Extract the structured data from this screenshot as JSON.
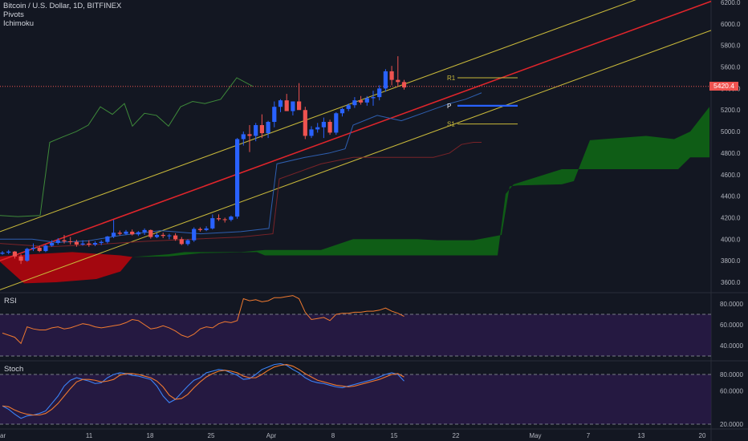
{
  "header": {
    "symbol_line": "Bitcoin / U.S. Dollar, 1D, BITFINEX",
    "indicators": [
      "Pivots",
      "Ichimoku"
    ]
  },
  "price_tag": "5420.4",
  "panels": {
    "rsi_label": "RSI",
    "stoch_label": "Stoch"
  },
  "colors": {
    "background": "#131722",
    "bull": "#2962ff",
    "bear": "#ef5350",
    "channel_mid": "#e0252b",
    "channel_band": "#c9b93a",
    "kumo_bull": "#0f5d16",
    "kumo_bear": "#a3070f",
    "chikou": "#3e8a3a",
    "tenkan": "#2e5fb0",
    "kijun": "#7a2328",
    "rsi_line": "#f07a30",
    "stoch_k": "#3b82f6",
    "stoch_d": "#f07a30",
    "osc_fill": "#2a1a4a"
  },
  "chart_data": [
    {
      "type": "candlestick",
      "title": "",
      "ylim": [
        3500,
        6300
      ],
      "y_ticks": [
        "6200.0",
        "6000.0",
        "5800.0",
        "5600.0",
        "5400.0",
        "5200.0",
        "5000.0",
        "4800.0",
        "4600.0",
        "4400.0",
        "4200.0",
        "4000.0",
        "3800.0",
        "3600.0"
      ],
      "x_ticks": [
        "ar",
        "11",
        "18",
        "25",
        "Apr",
        "8",
        "15",
        "22",
        "May",
        "7",
        "13",
        "20"
      ],
      "last_price": 5420,
      "candles": [
        [
          3865,
          3890,
          3855,
          3875
        ],
        [
          3875,
          3900,
          3860,
          3885
        ],
        [
          3885,
          3890,
          3820,
          3840
        ],
        [
          3840,
          3860,
          3770,
          3800
        ],
        [
          3800,
          3920,
          3790,
          3910
        ],
        [
          3910,
          3960,
          3890,
          3920
        ],
        [
          3920,
          3940,
          3880,
          3890
        ],
        [
          3890,
          3950,
          3880,
          3940
        ],
        [
          3940,
          3990,
          3930,
          3965
        ],
        [
          3965,
          4010,
          3950,
          3990
        ],
        [
          3990,
          4040,
          3960,
          3980
        ],
        [
          3980,
          4020,
          3950,
          3975
        ],
        [
          3975,
          3995,
          3930,
          3950
        ],
        [
          3950,
          3990,
          3940,
          3960
        ],
        [
          3960,
          3990,
          3930,
          3950
        ],
        [
          3950,
          3980,
          3935,
          3965
        ],
        [
          3965,
          3990,
          3945,
          3975
        ],
        [
          3975,
          4030,
          3960,
          4025
        ],
        [
          4025,
          4180,
          4010,
          4060
        ],
        [
          4060,
          4080,
          4035,
          4050
        ],
        [
          4050,
          4085,
          4040,
          4070
        ],
        [
          4070,
          4090,
          4035,
          4045
        ],
        [
          4045,
          4075,
          4030,
          4065
        ],
        [
          4065,
          4100,
          4040,
          4085
        ],
        [
          4085,
          4090,
          4005,
          4020
        ],
        [
          4020,
          4060,
          4010,
          4040
        ],
        [
          4040,
          4060,
          4010,
          4030
        ],
        [
          4030,
          4050,
          4000,
          4035
        ],
        [
          4035,
          4055,
          3985,
          4000
        ],
        [
          4000,
          4020,
          3945,
          3955
        ],
        [
          3955,
          4000,
          3940,
          3990
        ],
        [
          3990,
          4110,
          3975,
          4095
        ],
        [
          4095,
          4110,
          4070,
          4085
        ],
        [
          4085,
          4120,
          4075,
          4100
        ],
        [
          4100,
          4230,
          4090,
          4195
        ],
        [
          4195,
          4230,
          4170,
          4185
        ],
        [
          4185,
          4200,
          4155,
          4180
        ],
        [
          4180,
          4220,
          4165,
          4210
        ],
        [
          4210,
          4940,
          4190,
          4930
        ],
        [
          4930,
          5000,
          4870,
          4975
        ],
        [
          4975,
          5060,
          4810,
          4960
        ],
        [
          4960,
          5080,
          4910,
          5060
        ],
        [
          5060,
          5160,
          4940,
          4985
        ],
        [
          4985,
          5100,
          4940,
          5090
        ],
        [
          5090,
          5280,
          5040,
          5230
        ],
        [
          5230,
          5300,
          5180,
          5290
        ],
        [
          5290,
          5350,
          5200,
          5190
        ],
        [
          5190,
          5280,
          5150,
          5280
        ],
        [
          5280,
          5450,
          5210,
          5200
        ],
        [
          5200,
          5230,
          4930,
          4960
        ],
        [
          4960,
          5050,
          4940,
          5020
        ],
        [
          5020,
          5080,
          4990,
          5040
        ],
        [
          5040,
          5130,
          4940,
          5090
        ],
        [
          5090,
          5110,
          4970,
          4990
        ],
        [
          4990,
          5180,
          4970,
          5170
        ],
        [
          5170,
          5220,
          5140,
          5210
        ],
        [
          5210,
          5260,
          5190,
          5245
        ],
        [
          5245,
          5320,
          5220,
          5290
        ],
        [
          5290,
          5330,
          5250,
          5270
        ],
        [
          5270,
          5330,
          5240,
          5310
        ],
        [
          5310,
          5380,
          5240,
          5320
        ],
        [
          5320,
          5430,
          5290,
          5400
        ],
        [
          5400,
          5580,
          5370,
          5560
        ],
        [
          5560,
          5610,
          5430,
          5480
        ],
        [
          5480,
          5700,
          5420,
          5460
        ],
        [
          5460,
          5480,
          5390,
          5410
        ]
      ],
      "pivots": {
        "R1": 5500,
        "P": 5240,
        "S1": 5070
      },
      "pivot_labels": [
        "R1",
        "P",
        "S1"
      ],
      "regression_channel": {
        "mid_start": 3800,
        "mid_end": 6210,
        "band_offset": 270
      },
      "ichimoku": {
        "kumo_bottom_start": 3790,
        "kumo_top_start": 3840,
        "kumo_future_levels": [
          4490,
          4700,
          4920,
          4960,
          5000,
          5230
        ]
      }
    },
    {
      "type": "line",
      "title": "RSI",
      "ylim": [
        20,
        95
      ],
      "y_ticks": [
        "80.0000",
        "60.0000",
        "40.0000"
      ],
      "bands": [
        70,
        30
      ],
      "values": [
        52,
        50,
        48,
        42,
        58,
        56,
        55,
        55,
        57,
        58,
        56,
        57,
        59,
        61,
        60,
        58,
        57,
        58,
        59,
        60,
        62,
        65,
        64,
        60,
        56,
        57,
        59,
        57,
        54,
        50,
        48,
        51,
        56,
        58,
        57,
        61,
        63,
        62,
        64,
        85,
        83,
        84,
        82,
        83,
        86,
        86,
        87,
        88,
        85,
        72,
        65,
        66,
        67,
        64,
        70,
        71,
        71,
        72,
        72,
        73,
        73,
        74,
        76,
        73,
        71,
        68
      ]
    },
    {
      "type": "line",
      "title": "Stoch",
      "ylim": [
        15,
        95
      ],
      "y_ticks": [
        "80.0000",
        "60.0000",
        "20.0000"
      ],
      "bands": [
        80,
        20
      ],
      "series": [
        {
          "values": [
            42,
            38,
            32,
            27,
            30,
            31,
            33,
            36,
            45,
            54,
            66,
            73,
            76,
            74,
            72,
            69,
            70,
            76,
            80,
            82,
            81,
            79,
            78,
            76,
            74,
            66,
            54,
            46,
            50,
            58,
            66,
            73,
            76,
            82,
            84,
            86,
            85,
            82,
            79,
            74,
            75,
            80,
            86,
            89,
            92,
            93,
            91,
            86,
            82,
            76,
            72,
            70,
            69,
            67,
            65,
            64,
            66,
            68,
            70,
            72,
            74,
            77,
            80,
            82,
            80,
            72
          ]
        },
        {
          "values": [
            42,
            41,
            37,
            34,
            32,
            31,
            31,
            33,
            38,
            45,
            54,
            63,
            71,
            74,
            74,
            73,
            71,
            72,
            74,
            79,
            81,
            81,
            80,
            78,
            76,
            72,
            65,
            55,
            50,
            51,
            56,
            64,
            71,
            77,
            81,
            84,
            85,
            84,
            82,
            78,
            76,
            76,
            80,
            85,
            89,
            91,
            92,
            90,
            86,
            81,
            77,
            73,
            71,
            69,
            67,
            66,
            65,
            66,
            68,
            70,
            72,
            74,
            77,
            80,
            81,
            77
          ]
        }
      ]
    }
  ]
}
